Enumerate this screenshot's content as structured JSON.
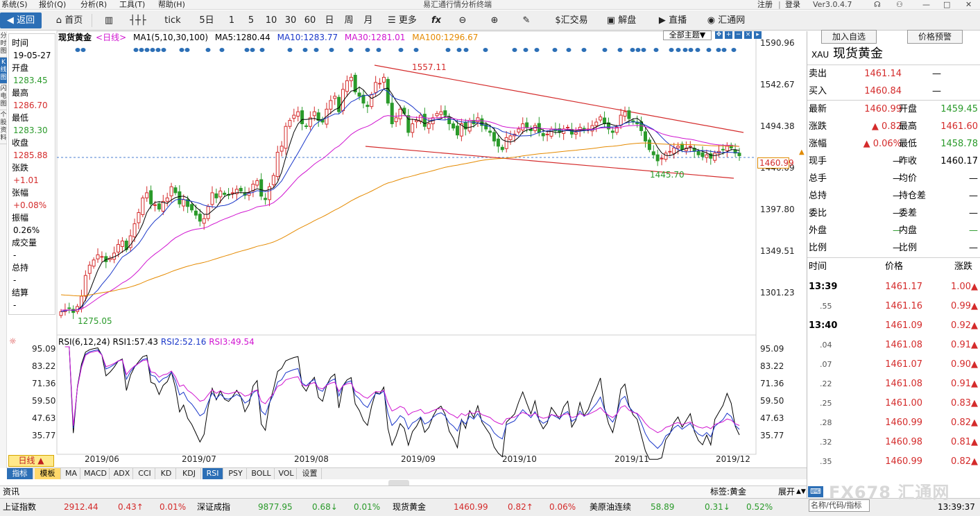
{
  "menu": {
    "items": [
      "系统(S)",
      "报价(Q)",
      "分析(R)",
      "工具(T)",
      "帮助(H)"
    ],
    "window_title": "易汇通行情分析终端",
    "version": "Ver3.0.4.7",
    "login": [
      "注册",
      "登录"
    ]
  },
  "toolbar": {
    "back": "返回",
    "home": "首页",
    "tick": "tick",
    "periods": [
      "5日",
      "1",
      "5",
      "10",
      "30",
      "60",
      "日",
      "周",
      "月"
    ],
    "more": "更多",
    "buttons": [
      "汇交易",
      "解盘",
      "直播",
      "汇通网"
    ]
  },
  "left_tabs": [
    "分时图",
    "K线图",
    "闪电图",
    "个股资料"
  ],
  "info": {
    "time_label": "时间",
    "time": "19-05-27",
    "open_label": "开盘",
    "open": "1283.45",
    "high_label": "最高",
    "high": "1286.70",
    "low_label": "最低",
    "low": "1283.30",
    "close_label": "收盘",
    "close": "1285.88",
    "chg_label": "张跌",
    "chg": "+1.01",
    "pct_label": "张幅",
    "pct": "+0.08%",
    "amp_label": "振幅",
    "amp": "0.26%",
    "vol_label": "成交量",
    "vol": "-",
    "oi_label": "总持",
    "oi": "-",
    "settle_label": "结算",
    "settle": "-"
  },
  "legend": {
    "name": "现货黄金",
    "period": "<日线>",
    "ma_main": "MA1(5,10,30,100)",
    "ma5": "MA5:1280.44",
    "ma10": "MA10:1283.77",
    "ma30": "MA30:1281.01",
    "ma100": "MA100:1296.67",
    "theme": "全部主题▼"
  },
  "rsi_legend": {
    "name": "RSI(6,12,24)",
    "rsi1": "RSI1:57.43",
    "rsi2": "RSI2:52.16",
    "rsi3": "RSI3:49.54"
  },
  "price_axis": [
    "1590.96",
    "1542.67",
    "1494.38",
    "1446.09",
    "1397.80",
    "1349.51",
    "1301.23"
  ],
  "rsi_axis": [
    "95.09",
    "83.22",
    "71.36",
    "59.50",
    "47.63",
    "35.77"
  ],
  "current_price_tag": "1460.99",
  "annotations": {
    "high": "1557.11",
    "low": "1275.05",
    "low2": "1445.70"
  },
  "x_axis": [
    "2019/06",
    "2019/07",
    "2019/08",
    "2019/09",
    "2019/10",
    "2019/11",
    "2019/12"
  ],
  "daily_button": "日线 ▲",
  "bottom_tabs": [
    "指标",
    "模板",
    "MA",
    "MACD",
    "ADX",
    "CCI",
    "KD",
    "KDJ",
    "RSI",
    "PSY",
    "BOLL",
    "VOL",
    "设置"
  ],
  "news": {
    "label": "资讯",
    "tag": "标签:黄金",
    "expand": "展开"
  },
  "status": {
    "items": [
      {
        "name": "上证指数",
        "value": "2912.44",
        "chg": "0.43↑",
        "pct": "0.01%",
        "color": "#d42b2b"
      },
      {
        "name": "深证成指",
        "value": "9877.95",
        "chg": "0.68↓",
        "pct": "0.01%",
        "color": "#2a9a2a"
      },
      {
        "name": "现货黄金",
        "value": "1460.99",
        "chg": "0.82↑",
        "pct": "0.06%",
        "color": "#d42b2b"
      },
      {
        "name": "美原油连续",
        "value": "58.89",
        "chg": "0.31↓",
        "pct": "0.52%",
        "color": "#2a9a2a"
      }
    ],
    "time": "13:39:37",
    "search_placeholder": "名称/代码/指标"
  },
  "right": {
    "add_btn": "加入自选",
    "alert_btn": "价格预警",
    "code": "XAU",
    "name": "现货黄金",
    "sell_label": "卖出",
    "sell": "1461.14",
    "buy_label": "买入",
    "buy": "1460.84",
    "dash": "—",
    "quote": [
      {
        "l1": "最新",
        "v1": "1460.99",
        "c1": "#d42b2b",
        "l2": "开盘",
        "v2": "1459.45",
        "c2": "#2a9a2a"
      },
      {
        "l1": "涨跌",
        "v1": "▲ 0.82",
        "c1": "#d42b2b",
        "l2": "最高",
        "v2": "1461.60",
        "c2": "#d42b2b"
      },
      {
        "l1": "涨幅",
        "v1": "▲ 0.06%",
        "c1": "#d42b2b",
        "l2": "最低",
        "v2": "1458.78",
        "c2": "#2a9a2a"
      },
      {
        "l1": "现手",
        "v1": "—",
        "c1": "#000",
        "l2": "昨收",
        "v2": "1460.17",
        "c2": "#000"
      },
      {
        "l1": "总手",
        "v1": "—",
        "c1": "#000",
        "l2": "均价",
        "v2": "—",
        "c2": "#000"
      },
      {
        "l1": "总持",
        "v1": "—",
        "c1": "#000",
        "l2": "持仓差",
        "v2": "—",
        "c2": "#000"
      },
      {
        "l1": "委比",
        "v1": "—",
        "c1": "#000",
        "l2": "委差",
        "v2": "—",
        "c2": "#000"
      },
      {
        "l1": "外盘",
        "v1": "—",
        "c1": "#2a9a2a",
        "l2": "内盘",
        "v2": "—",
        "c2": "#2a9a2a"
      },
      {
        "l1": "比例",
        "v1": "—",
        "c1": "#000",
        "l2": "比例",
        "v2": "—",
        "c2": "#000"
      }
    ],
    "tick_head": [
      "时间",
      "价格",
      "涨跌"
    ],
    "ticks": [
      {
        "t": "13:39",
        "p": "1461.17",
        "c": "1.00▲",
        "sub": false
      },
      {
        "t": ".55",
        "p": "1461.16",
        "c": "0.99▲",
        "sub": true
      },
      {
        "t": "13:40",
        "p": "1461.09",
        "c": "0.92▲",
        "sub": false
      },
      {
        "t": ".04",
        "p": "1461.08",
        "c": "0.91▲",
        "sub": true
      },
      {
        "t": ".07",
        "p": "1461.07",
        "c": "0.90▲",
        "sub": true
      },
      {
        "t": ".22",
        "p": "1461.08",
        "c": "0.91▲",
        "sub": true
      },
      {
        "t": ".25",
        "p": "1461.00",
        "c": "0.83▲",
        "sub": true
      },
      {
        "t": ".28",
        "p": "1460.99",
        "c": "0.82▲",
        "sub": true
      },
      {
        "t": ".32",
        "p": "1460.98",
        "c": "0.81▲",
        "sub": true
      },
      {
        "t": ".35",
        "p": "1460.99",
        "c": "0.82▲",
        "sub": true
      }
    ],
    "watermark": "FX678 汇通网"
  },
  "chart_data": {
    "type": "candlestick",
    "title": "现货黄金 <日线>",
    "y_range": [
      1275,
      1591
    ],
    "ma_legend": {
      "MA5": 1280.44,
      "MA10": 1283.77,
      "MA30": 1281.01,
      "MA100": 1296.67
    },
    "rsi": {
      "RSI1": 57.43,
      "RSI2": 52.16,
      "RSI3": 49.54,
      "range": [
        30,
        95
      ]
    },
    "close_series": [
      1280,
      1282,
      1284,
      1279,
      1286,
      1298,
      1322,
      1334,
      1340,
      1346,
      1344,
      1338,
      1342,
      1348,
      1358,
      1362,
      1352,
      1368,
      1382,
      1395,
      1412,
      1418,
      1405,
      1404,
      1399,
      1408,
      1412,
      1425,
      1418,
      1405,
      1410,
      1402,
      1398,
      1392,
      1385,
      1388,
      1402,
      1418,
      1412,
      1420,
      1416,
      1415,
      1418,
      1422,
      1420,
      1415,
      1418,
      1428,
      1432,
      1414,
      1410,
      1425,
      1438,
      1465,
      1472,
      1495,
      1502,
      1508,
      1512,
      1498,
      1495,
      1505,
      1512,
      1502,
      1500,
      1515,
      1525,
      1530,
      1512,
      1538,
      1548,
      1552,
      1535,
      1530,
      1522,
      1518,
      1532,
      1546,
      1545,
      1552,
      1522,
      1498,
      1505,
      1515,
      1510,
      1488,
      1498,
      1502,
      1508,
      1495,
      1498,
      1505,
      1510,
      1512,
      1508,
      1498,
      1493,
      1485,
      1498,
      1492,
      1502,
      1498,
      1505,
      1496,
      1492,
      1488,
      1478,
      1472,
      1468,
      1482,
      1484,
      1486,
      1492,
      1498,
      1494,
      1490,
      1496,
      1488,
      1484,
      1486,
      1492,
      1490,
      1488,
      1492,
      1494,
      1486,
      1488,
      1494,
      1490,
      1492,
      1496,
      1500,
      1506,
      1498,
      1492,
      1488,
      1494,
      1508,
      1512,
      1504,
      1500,
      1498,
      1490,
      1478,
      1468,
      1462,
      1455,
      1458,
      1464,
      1466,
      1470,
      1472,
      1468,
      1470,
      1472,
      1466,
      1462,
      1460,
      1462,
      1458,
      1464,
      1466,
      1468,
      1472,
      1470,
      1464,
      1461
    ]
  }
}
